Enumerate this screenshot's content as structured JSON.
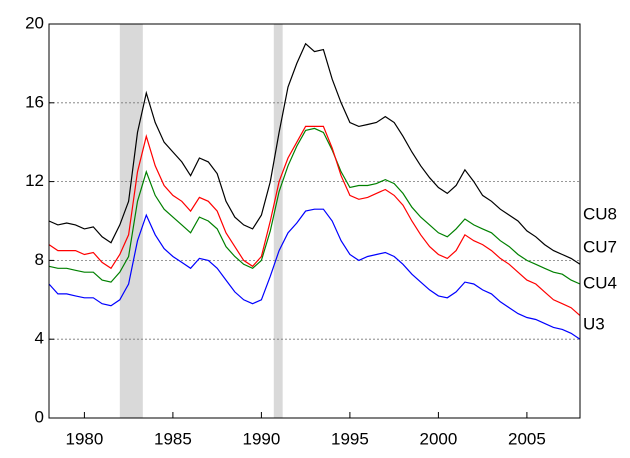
{
  "chart_data": {
    "type": "line",
    "x": [
      1978.0,
      1978.5,
      1979.0,
      1979.5,
      1980.0,
      1980.5,
      1981.0,
      1981.5,
      1982.0,
      1982.5,
      1983.0,
      1983.5,
      1984.0,
      1984.5,
      1985.0,
      1985.5,
      1986.0,
      1986.5,
      1987.0,
      1987.5,
      1988.0,
      1988.5,
      1989.0,
      1989.5,
      1990.0,
      1990.5,
      1991.0,
      1991.5,
      1992.0,
      1992.5,
      1993.0,
      1993.5,
      1994.0,
      1994.5,
      1995.0,
      1995.5,
      1996.0,
      1996.5,
      1997.0,
      1997.5,
      1998.0,
      1998.5,
      1999.0,
      1999.5,
      2000.0,
      2000.5,
      2001.0,
      2001.5,
      2002.0,
      2002.5,
      2003.0,
      2003.5,
      2004.0,
      2004.5,
      2005.0,
      2005.5,
      2006.0,
      2006.5,
      2007.0,
      2007.5,
      2008.0
    ],
    "series": [
      {
        "name": "CU8",
        "color": "#000000",
        "values": [
          10.0,
          9.8,
          9.9,
          9.8,
          9.6,
          9.7,
          9.2,
          8.9,
          9.8,
          11.0,
          14.5,
          16.5,
          15.0,
          14.0,
          13.5,
          13.0,
          12.3,
          13.2,
          13.0,
          12.4,
          11.0,
          10.2,
          9.8,
          9.6,
          10.3,
          12.0,
          14.5,
          16.8,
          18.0,
          19.0,
          18.6,
          18.7,
          17.2,
          16.0,
          15.0,
          14.8,
          14.9,
          15.0,
          15.3,
          15.0,
          14.3,
          13.5,
          12.8,
          12.2,
          11.7,
          11.4,
          11.8,
          12.6,
          12.0,
          11.3,
          11.0,
          10.6,
          10.3,
          10.0,
          9.5,
          9.2,
          8.8,
          8.5,
          8.3,
          8.1,
          7.8
        ]
      },
      {
        "name": "CU7",
        "color": "#008000",
        "values": [
          7.7,
          7.6,
          7.6,
          7.5,
          7.4,
          7.4,
          7.0,
          6.9,
          7.4,
          8.2,
          11.0,
          12.5,
          11.3,
          10.6,
          10.2,
          9.8,
          9.4,
          10.2,
          10.0,
          9.6,
          8.7,
          8.2,
          7.8,
          7.6,
          8.0,
          9.5,
          11.5,
          12.8,
          13.8,
          14.6,
          14.7,
          14.5,
          13.6,
          12.5,
          11.7,
          11.8,
          11.8,
          11.9,
          12.1,
          11.9,
          11.4,
          10.7,
          10.2,
          9.8,
          9.4,
          9.2,
          9.6,
          10.1,
          9.8,
          9.6,
          9.4,
          9.0,
          8.7,
          8.3,
          8.0,
          7.8,
          7.6,
          7.4,
          7.3,
          7.0,
          6.8
        ]
      },
      {
        "name": "CU4",
        "color": "#ff0000",
        "values": [
          8.8,
          8.5,
          8.5,
          8.5,
          8.3,
          8.4,
          7.9,
          7.6,
          8.3,
          9.3,
          12.5,
          14.3,
          12.8,
          11.8,
          11.3,
          11.0,
          10.5,
          11.2,
          11.0,
          10.5,
          9.4,
          8.7,
          8.0,
          7.7,
          8.2,
          10.0,
          12.0,
          13.2,
          14.0,
          14.8,
          14.8,
          14.8,
          13.7,
          12.3,
          11.3,
          11.1,
          11.2,
          11.4,
          11.6,
          11.3,
          10.8,
          10.0,
          9.3,
          8.7,
          8.3,
          8.1,
          8.5,
          9.3,
          9.0,
          8.8,
          8.5,
          8.1,
          7.8,
          7.4,
          7.0,
          6.8,
          6.4,
          6.0,
          5.8,
          5.6,
          5.2
        ]
      },
      {
        "name": "U3",
        "color": "#0000ff",
        "values": [
          6.8,
          6.3,
          6.3,
          6.2,
          6.1,
          6.1,
          5.8,
          5.7,
          6.0,
          6.8,
          9.0,
          10.3,
          9.3,
          8.6,
          8.2,
          7.9,
          7.6,
          8.1,
          8.0,
          7.6,
          7.0,
          6.4,
          6.0,
          5.8,
          6.0,
          7.2,
          8.5,
          9.4,
          9.9,
          10.5,
          10.6,
          10.6,
          10.0,
          9.0,
          8.3,
          8.0,
          8.2,
          8.3,
          8.4,
          8.2,
          7.8,
          7.3,
          6.9,
          6.5,
          6.2,
          6.1,
          6.4,
          6.9,
          6.8,
          6.5,
          6.3,
          5.9,
          5.6,
          5.3,
          5.1,
          5.0,
          4.8,
          4.6,
          4.5,
          4.3,
          4.0
        ]
      }
    ],
    "shaded_periods": [
      [
        1982.0,
        1983.3
      ],
      [
        1990.7,
        1991.2
      ]
    ],
    "xlim": [
      1978,
      2008
    ],
    "xticks": [
      1980,
      1985,
      1990,
      1995,
      2000,
      2005
    ],
    "ylim": [
      0,
      20
    ],
    "yticks": [
      0,
      4,
      8,
      12,
      16,
      20
    ],
    "grid": true
  }
}
